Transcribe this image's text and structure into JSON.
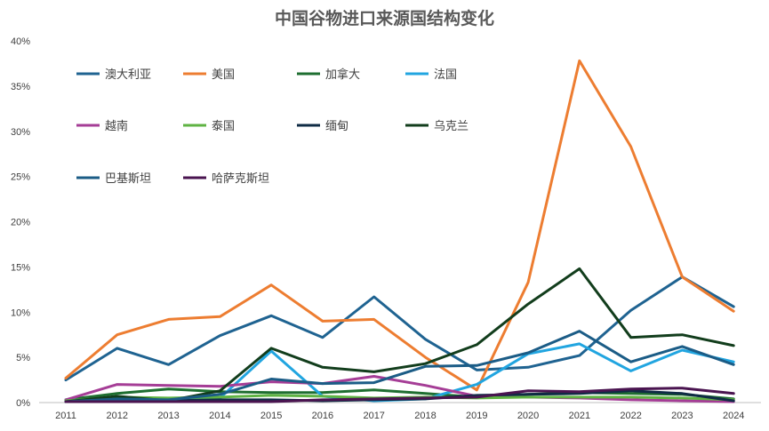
{
  "chart_data": {
    "type": "line",
    "title": "中国谷物进口来源国结构变化",
    "xlabel": "",
    "ylabel": "",
    "ylim": [
      0,
      40
    ],
    "y_ticks": [
      "0%",
      "5%",
      "10%",
      "15%",
      "20%",
      "25%",
      "30%",
      "35%",
      "40%"
    ],
    "categories": [
      "2011",
      "2012",
      "2013",
      "2014",
      "2015",
      "2016",
      "2017",
      "2018",
      "2019",
      "2020",
      "2021",
      "2022",
      "2023",
      "2024"
    ],
    "grid": false,
    "legend_position": "top-left",
    "series": [
      {
        "name": "澳大利亚",
        "color": "#1f6391",
        "values": [
          2.5,
          6.0,
          4.2,
          7.4,
          9.6,
          7.2,
          11.7,
          7.0,
          3.6,
          3.9,
          5.2,
          10.2,
          13.9,
          10.6
        ]
      },
      {
        "name": "美国",
        "color": "#ed7d31",
        "values": [
          2.7,
          7.5,
          9.2,
          9.5,
          13.0,
          9.0,
          9.2,
          5.0,
          1.4,
          13.3,
          37.8,
          28.3,
          13.9,
          10.1
        ]
      },
      {
        "name": "加拿大",
        "color": "#1e6e30",
        "values": [
          0.3,
          1.0,
          1.5,
          1.2,
          1.1,
          1.1,
          1.4,
          1.0,
          0.6,
          0.9,
          1.1,
          1.0,
          0.9,
          0.4
        ]
      },
      {
        "name": "法国",
        "color": "#21a5e0",
        "values": [
          0.3,
          0.2,
          0.1,
          0.5,
          5.7,
          0.7,
          0.2,
          0.4,
          2.0,
          5.4,
          6.5,
          3.5,
          5.8,
          4.5
        ]
      },
      {
        "name": "越南",
        "color": "#a53d96",
        "values": [
          0.3,
          2.0,
          1.9,
          1.8,
          2.3,
          2.1,
          2.9,
          1.9,
          0.7,
          0.6,
          0.5,
          0.3,
          0.2,
          0.1
        ]
      },
      {
        "name": "泰国",
        "color": "#5fb343",
        "values": [
          0.2,
          0.6,
          0.5,
          0.6,
          0.8,
          0.7,
          0.5,
          0.6,
          0.5,
          0.6,
          0.6,
          0.6,
          0.5,
          0.3
        ]
      },
      {
        "name": "缅甸",
        "color": "#0f2b45",
        "values": [
          0.1,
          0.2,
          0.2,
          0.3,
          0.3,
          0.2,
          0.3,
          0.4,
          0.8,
          0.9,
          1.0,
          1.3,
          1.0,
          0.2
        ]
      },
      {
        "name": "乌克兰",
        "color": "#123d1c",
        "values": [
          0.1,
          0.7,
          0.2,
          1.3,
          6.0,
          3.9,
          3.4,
          4.3,
          6.4,
          10.9,
          14.8,
          7.2,
          7.5,
          6.3
        ]
      },
      {
        "name": "巴基斯坦",
        "color": "#1b5c86",
        "values": [
          0.1,
          0.4,
          0.3,
          0.9,
          2.6,
          2.1,
          2.2,
          4.0,
          4.1,
          5.5,
          7.9,
          4.5,
          6.2,
          4.2
        ]
      },
      {
        "name": "哈萨克斯坦",
        "color": "#4a1450",
        "values": [
          0.1,
          0.1,
          0.1,
          0.1,
          0.1,
          0.3,
          0.4,
          0.5,
          0.6,
          1.3,
          1.2,
          1.5,
          1.6,
          1.0
        ]
      }
    ]
  }
}
